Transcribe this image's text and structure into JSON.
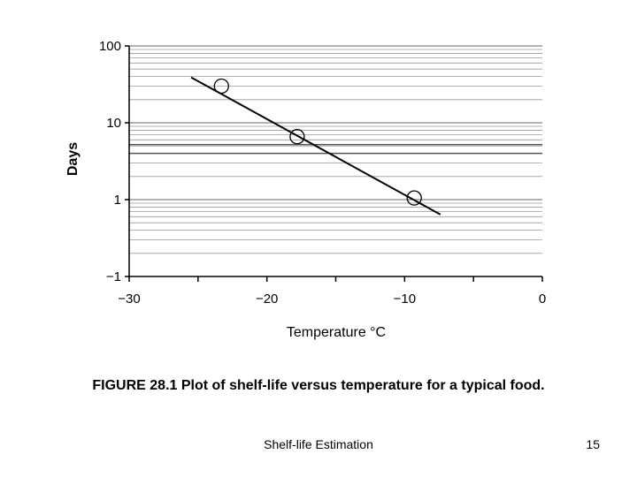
{
  "chart_data": {
    "type": "scatter",
    "title": "",
    "xlabel": "Temperature °C",
    "ylabel": "Days",
    "xlim": [
      -30,
      0
    ],
    "ylim_log10": [
      -1,
      2
    ],
    "y_scale": "log",
    "x_ticks": [
      -30,
      -25,
      -20,
      -15,
      -10,
      -5,
      0
    ],
    "x_tick_labels": [
      "−30",
      "",
      "−20",
      "",
      "−10",
      "",
      "0"
    ],
    "y_tick_labels": [
      "100",
      "10",
      "1",
      "−1"
    ],
    "grid": true,
    "points": [
      {
        "x": -23.3,
        "y": 30
      },
      {
        "x": -17.8,
        "y": 6.6
      },
      {
        "x": -9.3,
        "y": 1.05
      }
    ],
    "fit_line": {
      "x": [
        -25.5,
        -7.4
      ],
      "y": [
        39,
        0.64
      ]
    }
  },
  "caption": "FIGURE 28.1 Plot of shelf-life versus temperature for a typical food.",
  "footer": {
    "title": "Shelf-life Estimation",
    "page_number": "15"
  }
}
